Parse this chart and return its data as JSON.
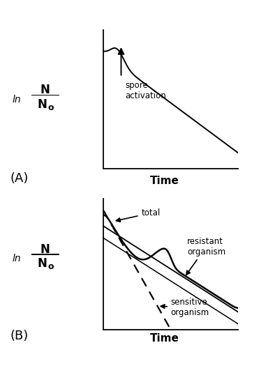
{
  "panel_A": {
    "label": "(A)",
    "xlabel": "Time",
    "annotation": "spore\nactivation"
  },
  "panel_B": {
    "label": "(B)",
    "xlabel": "Time",
    "annotation_total": "total",
    "annotation_resistant": "resistant\norganism",
    "annotation_sensitive": "sensitive\norganism"
  },
  "bg_color": "#ffffff",
  "line_color": "#000000"
}
